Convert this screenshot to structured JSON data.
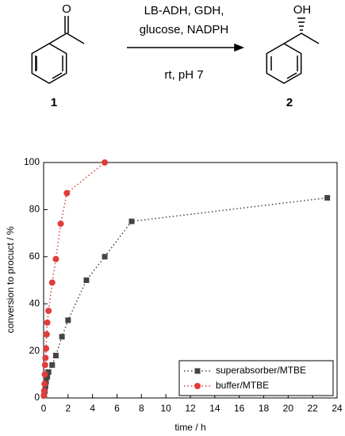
{
  "scheme": {
    "reagents_line1": "LB-ADH, GDH,",
    "reagents_line2": "glucose, NADPH",
    "conditions": "rt, pH 7",
    "substrate_label": "1",
    "product_label": "2",
    "substrate_atom": "O",
    "product_atom": "OH"
  },
  "chart_data": {
    "type": "scatter",
    "xlabel": "time / h",
    "ylabel": "conversion to procuct / %",
    "xlim": [
      0,
      24
    ],
    "xticks": [
      0,
      2,
      4,
      6,
      8,
      10,
      12,
      14,
      16,
      18,
      20,
      22,
      24
    ],
    "ylim": [
      0,
      100
    ],
    "yticks": [
      0,
      20,
      40,
      60,
      80,
      100
    ],
    "legend": "lower right",
    "series": [
      {
        "name": "superabsorber/MTBE",
        "color": "#444444",
        "marker": "square",
        "x": [
          0.05,
          0.1,
          0.15,
          0.2,
          0.3,
          0.4,
          0.7,
          1.0,
          1.5,
          2,
          3.5,
          5,
          7.2,
          23.2
        ],
        "values": [
          1,
          3,
          5,
          7,
          9,
          11,
          14,
          18,
          26,
          33,
          50,
          60,
          75,
          85
        ]
      },
      {
        "name": "buffer/MTBE",
        "color": "#e03c3c",
        "marker": "circle",
        "x": [
          0.02,
          0.05,
          0.08,
          0.1,
          0.12,
          0.15,
          0.2,
          0.25,
          0.3,
          0.4,
          0.7,
          1.0,
          1.4,
          1.9,
          5.0
        ],
        "values": [
          1,
          3,
          6,
          10,
          14,
          17,
          21,
          27,
          32,
          37,
          49,
          59,
          74,
          87,
          100
        ]
      }
    ]
  }
}
